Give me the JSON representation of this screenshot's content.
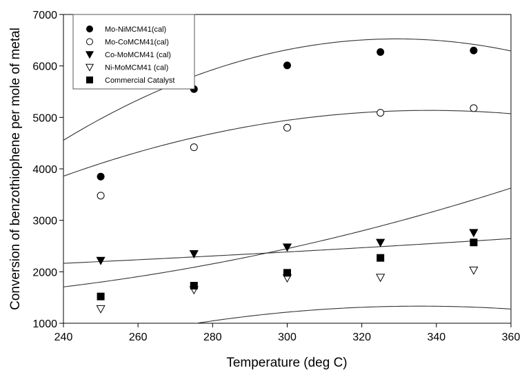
{
  "chart_data": {
    "type": "scatter",
    "title": "",
    "xlabel": "Temperature (deg C)",
    "ylabel": "Conversion of benzothiophene per mole of metal",
    "xlim": [
      240,
      360
    ],
    "ylim": [
      1000,
      7000
    ],
    "xticks": [
      240,
      260,
      280,
      300,
      320,
      340,
      360
    ],
    "yticks": [
      1000,
      2000,
      3000,
      4000,
      5000,
      6000,
      7000
    ],
    "grid": false,
    "legend_position": "top-left",
    "x": [
      250,
      275,
      300,
      325,
      350
    ],
    "series": [
      {
        "name": "Mo-NiMCM41(cal)",
        "marker": "filled-circle",
        "values": [
          3850,
          5550,
          6010,
          6270,
          6300
        ],
        "fit": {
          "type": "quadratic",
          "coefficients": [
            -20290,
            162.9,
            -0.2474
          ]
        }
      },
      {
        "name": "Mo-CoMCM41(cal)",
        "marker": "open-circle",
        "values": [
          3480,
          4420,
          4800,
          5090,
          5180
        ],
        "fit": {
          "type": "quadratic",
          "coefficients": [
            -10045,
            89.8,
            -0.1328
          ]
        }
      },
      {
        "name": "Co-MoMCM41 (cal)",
        "marker": "filled-triangle-down",
        "values": [
          2220,
          2350,
          2480,
          2570,
          2760
        ],
        "fit": {
          "type": "quadratic",
          "coefficients": [
            1680,
            0.7,
            0.0055
          ]
        }
      },
      {
        "name": "Ni-MoMCM41 (cal)",
        "marker": "open-triangle-down",
        "values": [
          1280,
          1650,
          1880,
          1890,
          2030
        ],
        "fit": {
          "type": "quadratic",
          "coefficients": [
            -9135,
            62.4,
            -0.093
          ]
        }
      },
      {
        "name": "Commercial Catalyst",
        "marker": "filled-square",
        "values": [
          1520,
          1730,
          1980,
          2270,
          2570
        ],
        "fit": {
          "type": "quadratic",
          "coefficients": [
            3050,
            -20.0,
            0.06
          ]
        }
      }
    ]
  }
}
